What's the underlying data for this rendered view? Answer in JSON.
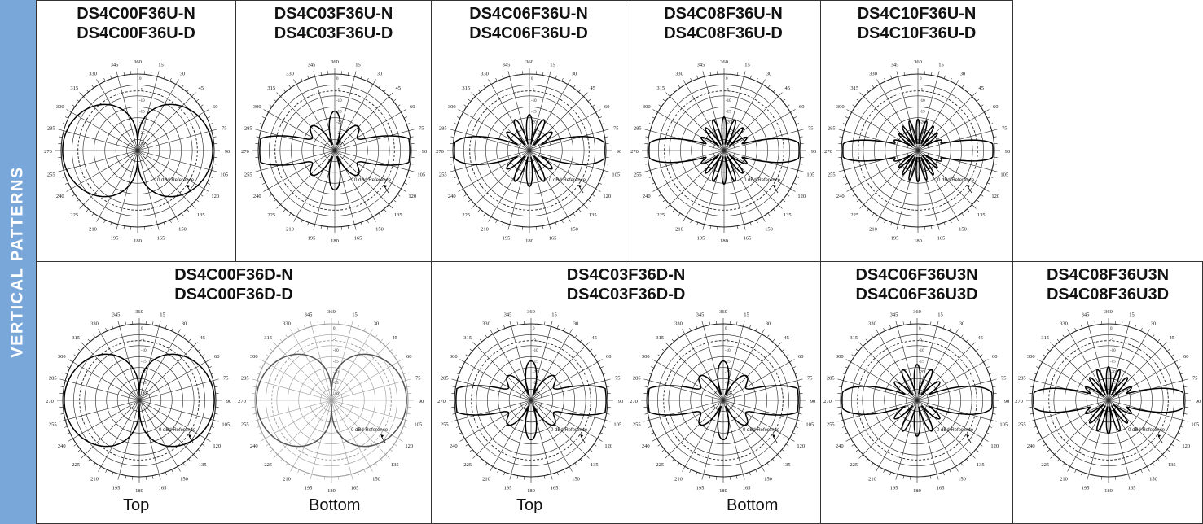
{
  "side_label": "VERTICAL PATTERNS",
  "angle_labels": [
    "360",
    "15",
    "30",
    "45",
    "60",
    "75",
    "90",
    "105",
    "120",
    "135",
    "150",
    "165",
    "180",
    "195",
    "210",
    "225",
    "240",
    "255",
    "270",
    "285",
    "300",
    "315",
    "330",
    "345"
  ],
  "ring_labels": [
    "0",
    "-5",
    "-10",
    "-15",
    "-20",
    "-25",
    "-30"
  ],
  "reference_text": "0 dBd Reference",
  "cells": [
    {
      "line1": "DS4C00F36U-N",
      "line2": "DS4C00F36U-D",
      "plots": [
        {
          "pattern": "dipole0"
        }
      ]
    },
    {
      "line1": "DS4C03F36U-N",
      "line2": "DS4C03F36U-D",
      "plots": [
        {
          "pattern": "lobes3"
        }
      ]
    },
    {
      "line1": "DS4C06F36U-N",
      "line2": "DS4C06F36U-D",
      "plots": [
        {
          "pattern": "lobes6"
        }
      ]
    },
    {
      "line1": "DS4C08F36U-N",
      "line2": "DS4C08F36U-D",
      "plots": [
        {
          "pattern": "lobes8"
        }
      ]
    },
    {
      "line1": "DS4C10F36U-N",
      "line2": "DS4C10F36U-D",
      "plots": [
        {
          "pattern": "lobes10"
        }
      ]
    },
    {
      "line1": "DS4C00F36D-N",
      "line2": "DS4C00F36D-D",
      "plots": [
        {
          "pattern": "dipole0",
          "caption": "Top"
        },
        {
          "pattern": "dipole0",
          "caption": "Bottom",
          "faint": true
        }
      ]
    },
    {
      "line1": "DS4C03F36D-N",
      "line2": "DS4C03F36D-D",
      "plots": [
        {
          "pattern": "lobes3",
          "caption": "Top"
        },
        {
          "pattern": "lobes3",
          "caption": "Bottom"
        }
      ]
    },
    {
      "line1": "DS4C06F36U3N",
      "line2": "DS4C06F36U3D",
      "plots": [
        {
          "pattern": "lobes6"
        }
      ]
    },
    {
      "line1": "DS4C08F36U3N",
      "line2": "DS4C08F36U3D",
      "plots": [
        {
          "pattern": "lobes8"
        }
      ]
    }
  ]
}
